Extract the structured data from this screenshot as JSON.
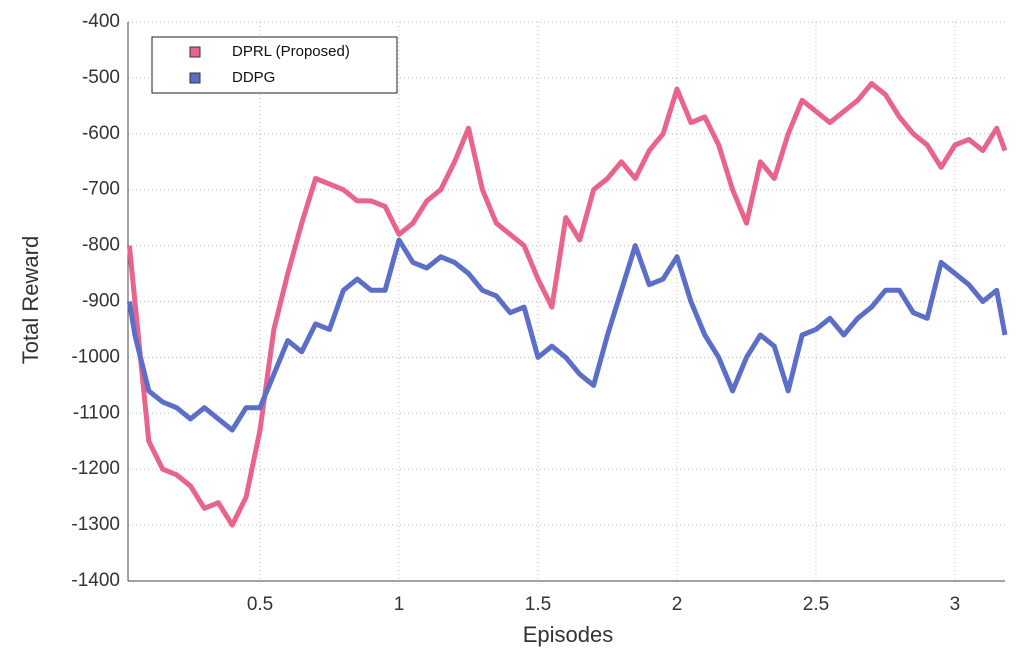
{
  "chart_data": {
    "type": "line",
    "xlabel": "Episodes",
    "ylabel": "Total Reward",
    "x": [
      0.03,
      0.05,
      0.1,
      0.15,
      0.2,
      0.25,
      0.3,
      0.35,
      0.4,
      0.45,
      0.5,
      0.55,
      0.6,
      0.65,
      0.7,
      0.75,
      0.8,
      0.85,
      0.9,
      0.95,
      1.0,
      1.05,
      1.1,
      1.15,
      1.2,
      1.25,
      1.3,
      1.35,
      1.4,
      1.45,
      1.5,
      1.55,
      1.6,
      1.65,
      1.7,
      1.75,
      1.8,
      1.85,
      1.9,
      1.95,
      2.0,
      2.05,
      2.1,
      2.15,
      2.2,
      2.25,
      2.3,
      2.35,
      2.4,
      2.45,
      2.5,
      2.55,
      2.6,
      2.65,
      2.7,
      2.75,
      2.8,
      2.85,
      2.9,
      2.95,
      3.0,
      3.05,
      3.1,
      3.15,
      3.18
    ],
    "series": [
      {
        "name": "DPRL (Proposed)",
        "color": "#e8648a",
        "values": [
          -800,
          -900,
          -1150,
          -1200,
          -1210,
          -1230,
          -1270,
          -1260,
          -1300,
          -1250,
          -1130,
          -950,
          -850,
          -760,
          -680,
          -690,
          -700,
          -720,
          -720,
          -730,
          -780,
          -760,
          -720,
          -700,
          -650,
          -590,
          -700,
          -760,
          -780,
          -800,
          -860,
          -910,
          -750,
          -790,
          -700,
          -680,
          -650,
          -680,
          -630,
          -600,
          -520,
          -580,
          -570,
          -620,
          -700,
          -760,
          -650,
          -680,
          -600,
          -540,
          -560,
          -580,
          -560,
          -540,
          -510,
          -530,
          -570,
          -600,
          -620,
          -660,
          -620,
          -610,
          -630,
          -590,
          -630
        ]
      },
      {
        "name": "DDPG",
        "color": "#5b6ec8",
        "values": [
          -900,
          -960,
          -1060,
          -1080,
          -1090,
          -1110,
          -1090,
          -1110,
          -1130,
          -1090,
          -1090,
          -1030,
          -970,
          -990,
          -940,
          -950,
          -880,
          -860,
          -880,
          -880,
          -790,
          -830,
          -840,
          -820,
          -830,
          -850,
          -880,
          -890,
          -920,
          -910,
          -1000,
          -980,
          -1000,
          -1030,
          -1050,
          -960,
          -880,
          -800,
          -870,
          -860,
          -820,
          -900,
          -960,
          -1000,
          -1060,
          -1000,
          -960,
          -980,
          -1060,
          -960,
          -950,
          -930,
          -960,
          -930,
          -910,
          -880,
          -880,
          -920,
          -930,
          -830,
          -850,
          -870,
          -900,
          -880,
          -960
        ]
      }
    ],
    "xlim": [
      0.025,
      3.18
    ],
    "ylim": [
      -1400,
      -400
    ],
    "xticks": [
      0.5,
      1,
      1.5,
      2,
      2.5,
      3
    ],
    "yticks": [
      -1400,
      -1300,
      -1200,
      -1100,
      -1000,
      -900,
      -800,
      -700,
      -600,
      -500,
      -400
    ],
    "grid": true,
    "legend": "upper left"
  }
}
